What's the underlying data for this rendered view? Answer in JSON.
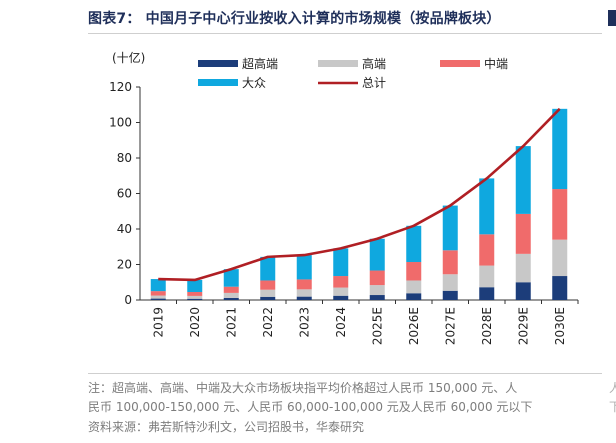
{
  "figure": {
    "title": "图表7： 中国月子中心行业按收入计算的市场规模（按品牌板块）",
    "note_line1": "注：超高端、高端、中端及大众市场板块指平均价格超过人民币 150,000 元、人",
    "note_line2": "民币 100,000-150,000 元、人民币 60,000-100,000 元及人民币 60,000 元以下",
    "source": "资料来源：弗若斯特沙利文，公司招股书，华泰研究",
    "side_glyph_1": "人",
    "side_glyph_2": "下"
  },
  "colors": {
    "super_premium": "#1c3d7a",
    "premium": "#c8c8c8",
    "mid": "#f06b6b",
    "mass": "#0fa8df",
    "total": "#b01f24",
    "title": "#1f2f5a"
  },
  "chart_data": {
    "type": "bar",
    "stacked": true,
    "unit_label": "(十亿)",
    "categories": [
      "2019",
      "2020",
      "2021",
      "2022",
      "2023",
      "2024",
      "2025E",
      "2026E",
      "2027E",
      "2028E",
      "2029E",
      "2030E"
    ],
    "ylim": [
      0,
      120
    ],
    "yticks": [
      0,
      20,
      40,
      60,
      80,
      100,
      120
    ],
    "series": [
      {
        "name": "超高端",
        "key": "super_premium",
        "values": [
          0.8,
          0.7,
          1.2,
          1.8,
          1.9,
          2.4,
          2.8,
          3.8,
          5.2,
          7.2,
          10.0,
          13.5
        ]
      },
      {
        "name": "高端",
        "key": "premium",
        "values": [
          1.7,
          1.6,
          2.8,
          4.0,
          4.1,
          4.6,
          5.6,
          7.2,
          9.3,
          12.2,
          16.0,
          20.5
        ]
      },
      {
        "name": "中端",
        "key": "mid",
        "values": [
          2.5,
          2.2,
          3.5,
          5.2,
          5.6,
          6.5,
          8.2,
          10.4,
          13.5,
          17.6,
          22.5,
          28.5
        ]
      },
      {
        "name": "大众",
        "key": "mass",
        "values": [
          6.8,
          6.8,
          9.9,
          13.3,
          13.7,
          15.6,
          17.9,
          20.4,
          25.2,
          31.5,
          38.2,
          45.2
        ]
      }
    ],
    "line": {
      "name": "总计",
      "key": "total",
      "values": [
        11.8,
        11.3,
        17.4,
        24.3,
        25.3,
        29.1,
        34.5,
        41.8,
        53.2,
        68.5,
        86.7,
        107.7
      ]
    },
    "legend": [
      {
        "label": "超高端",
        "key": "super_premium",
        "kind": "box"
      },
      {
        "label": "高端",
        "key": "premium",
        "kind": "box"
      },
      {
        "label": "中端",
        "key": "mid",
        "kind": "box"
      },
      {
        "label": "大众",
        "key": "mass",
        "kind": "box"
      },
      {
        "label": "总计",
        "key": "total",
        "kind": "line"
      }
    ]
  }
}
